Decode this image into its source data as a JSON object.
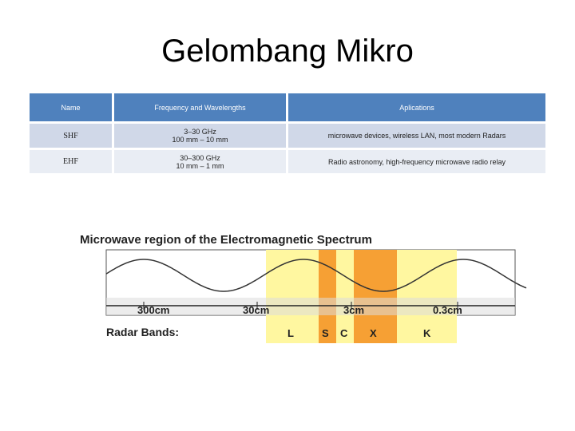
{
  "title": "Gelombang Mikro",
  "table": {
    "header": [
      "Name",
      "Frequency and Wavelengths",
      "Aplications"
    ],
    "rows": [
      {
        "name": "SHF",
        "frequency": "3–30 GHz",
        "wavelength": "100 mm – 10 mm",
        "applications": "microwave devices, wireless LAN, most modern Radars"
      },
      {
        "name": "EHF",
        "frequency": "30–300 GHz",
        "wavelength": "10 mm – 1 mm",
        "applications": "Radio astronomy, high-frequency microwave radio relay"
      }
    ]
  },
  "diagram": {
    "title": "Microwave region of the Electromagnetic Spectrum",
    "scale": [
      "300cm",
      "30cm",
      "3cm",
      "0.3cm"
    ],
    "bands_label": "Radar Bands:",
    "bands": [
      "L",
      "S",
      "C",
      "X",
      "K"
    ]
  }
}
